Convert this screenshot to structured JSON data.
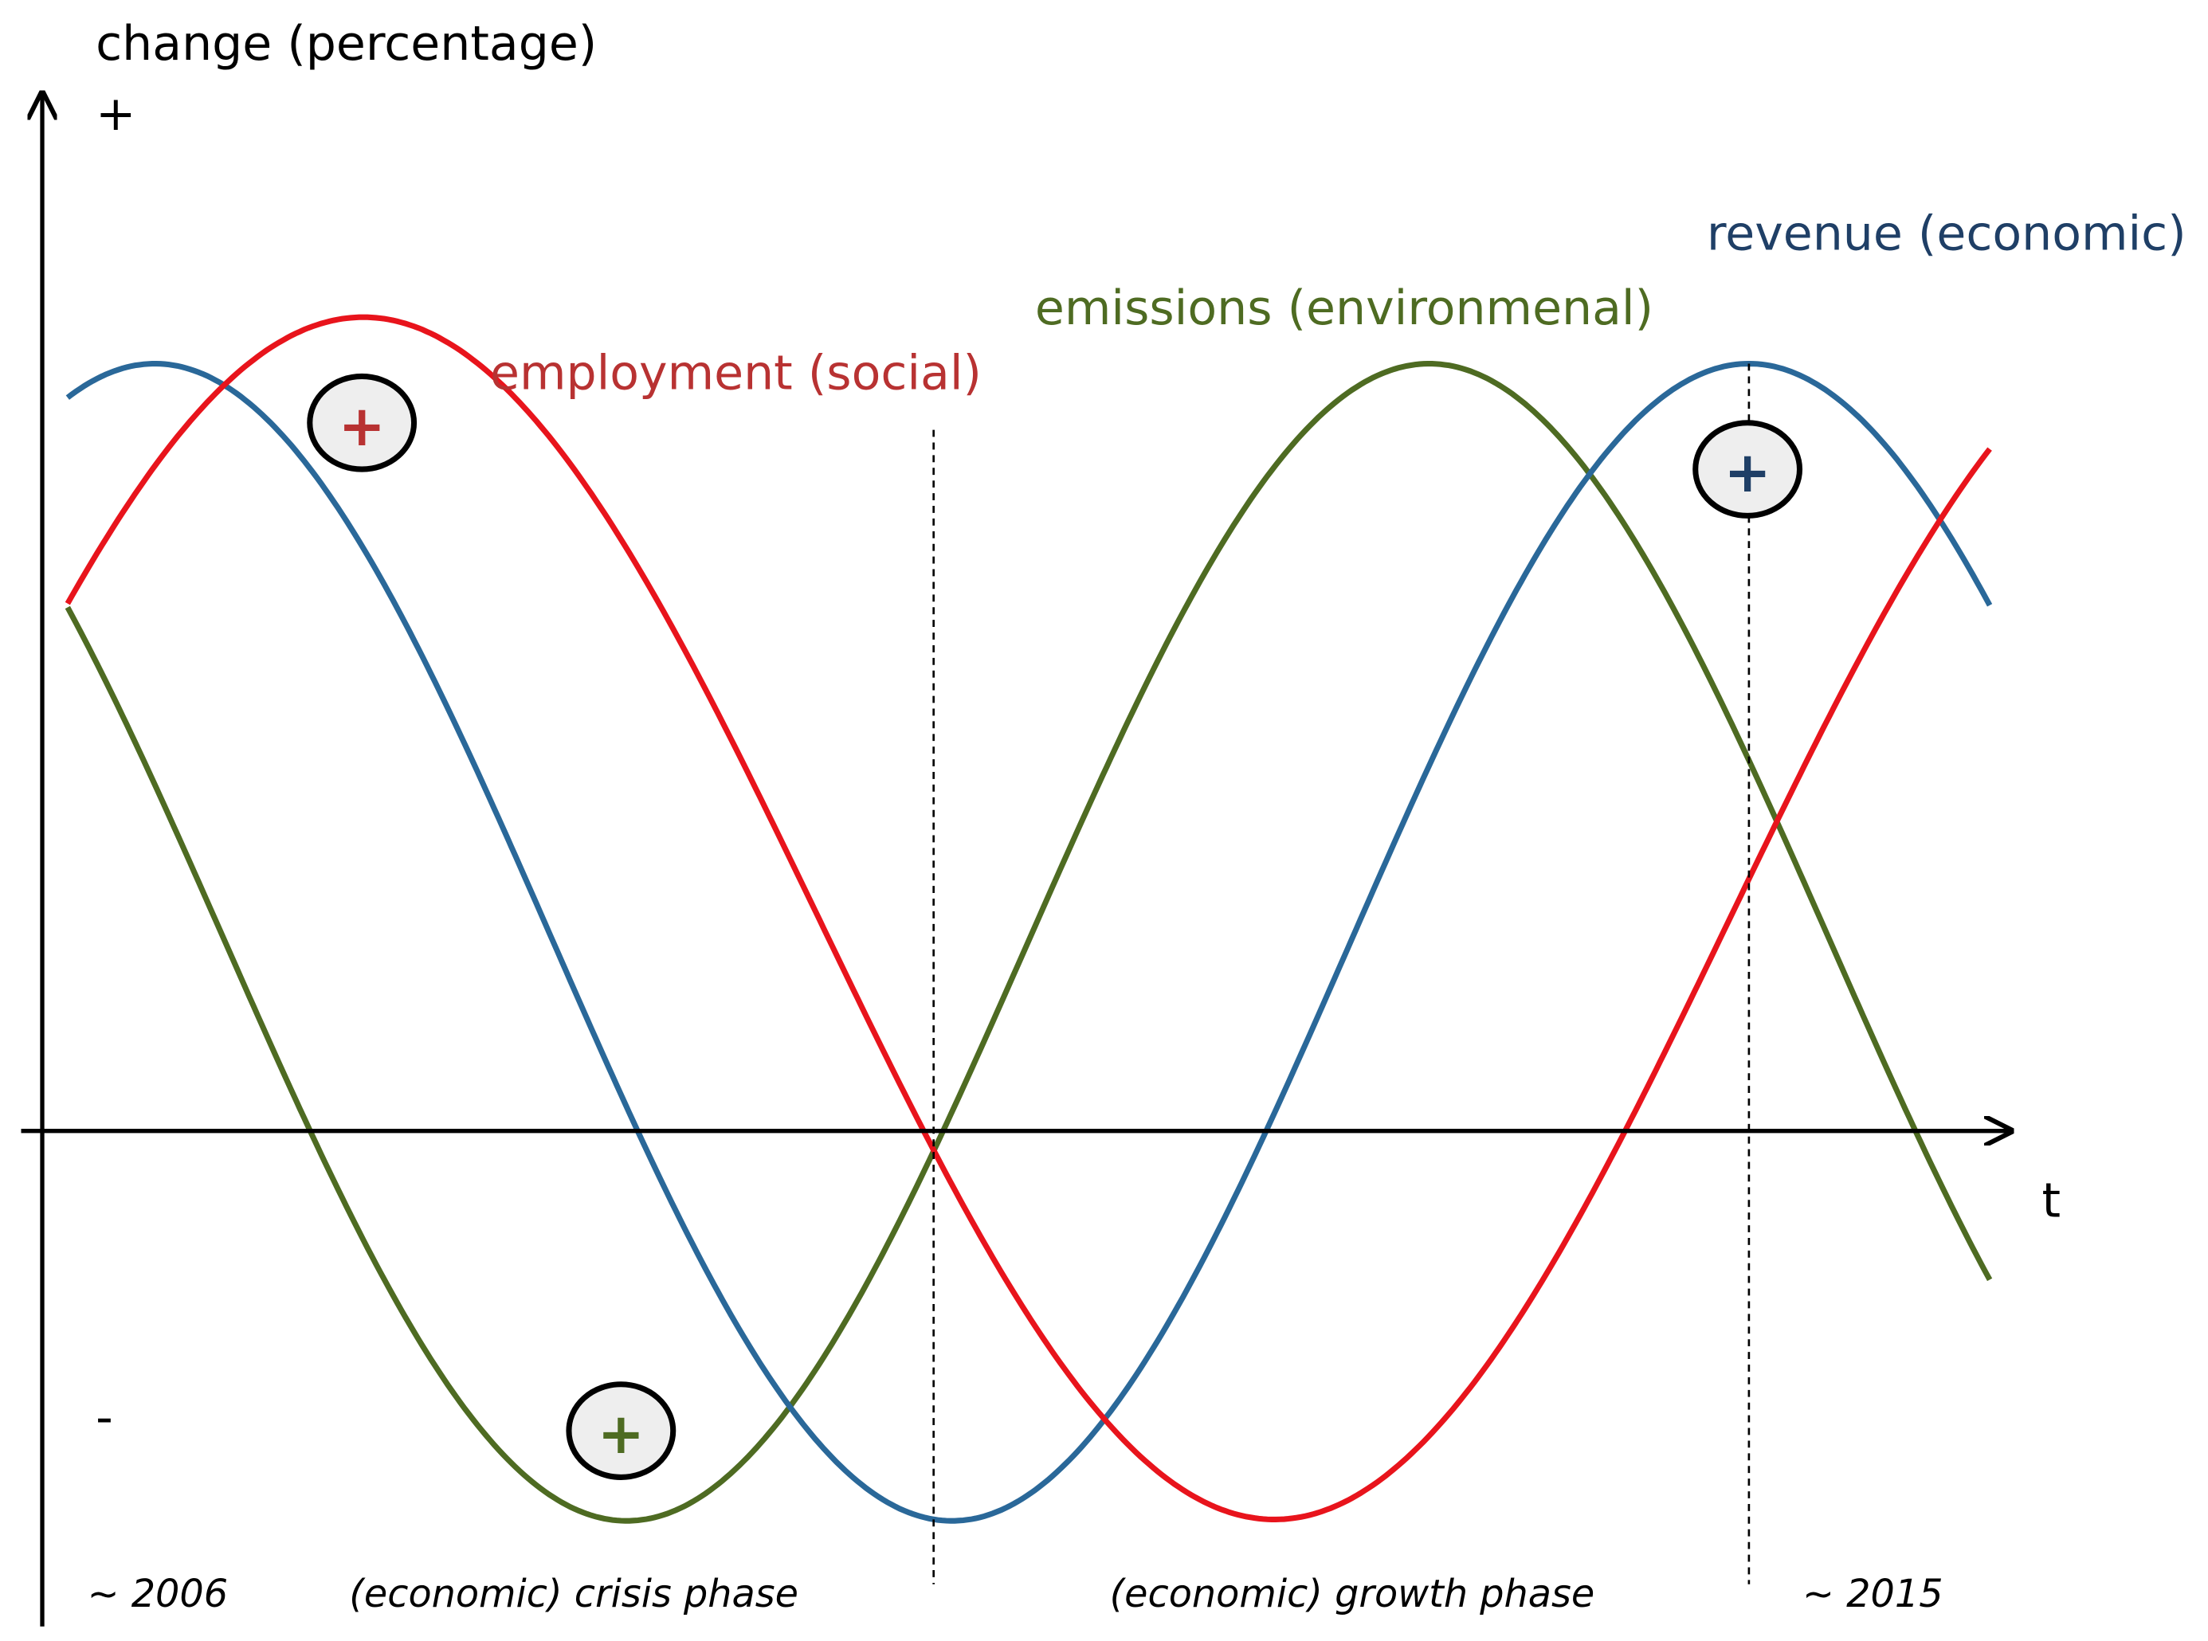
{
  "axis": {
    "y_label": "change (percentage)",
    "y_plus": "+",
    "y_minus": "-",
    "x_label": "t"
  },
  "curves": {
    "revenue": "revenue (economic)",
    "emissions": "emissions (environmenal)",
    "employment": "employment (social)"
  },
  "markers": {
    "employment": "+",
    "emissions": "+",
    "revenue": "+"
  },
  "timeline": {
    "start": "~ 2006",
    "crisis": "(economic) crisis phase",
    "growth": "(economic) growth phase",
    "end": "~ 2015"
  }
}
